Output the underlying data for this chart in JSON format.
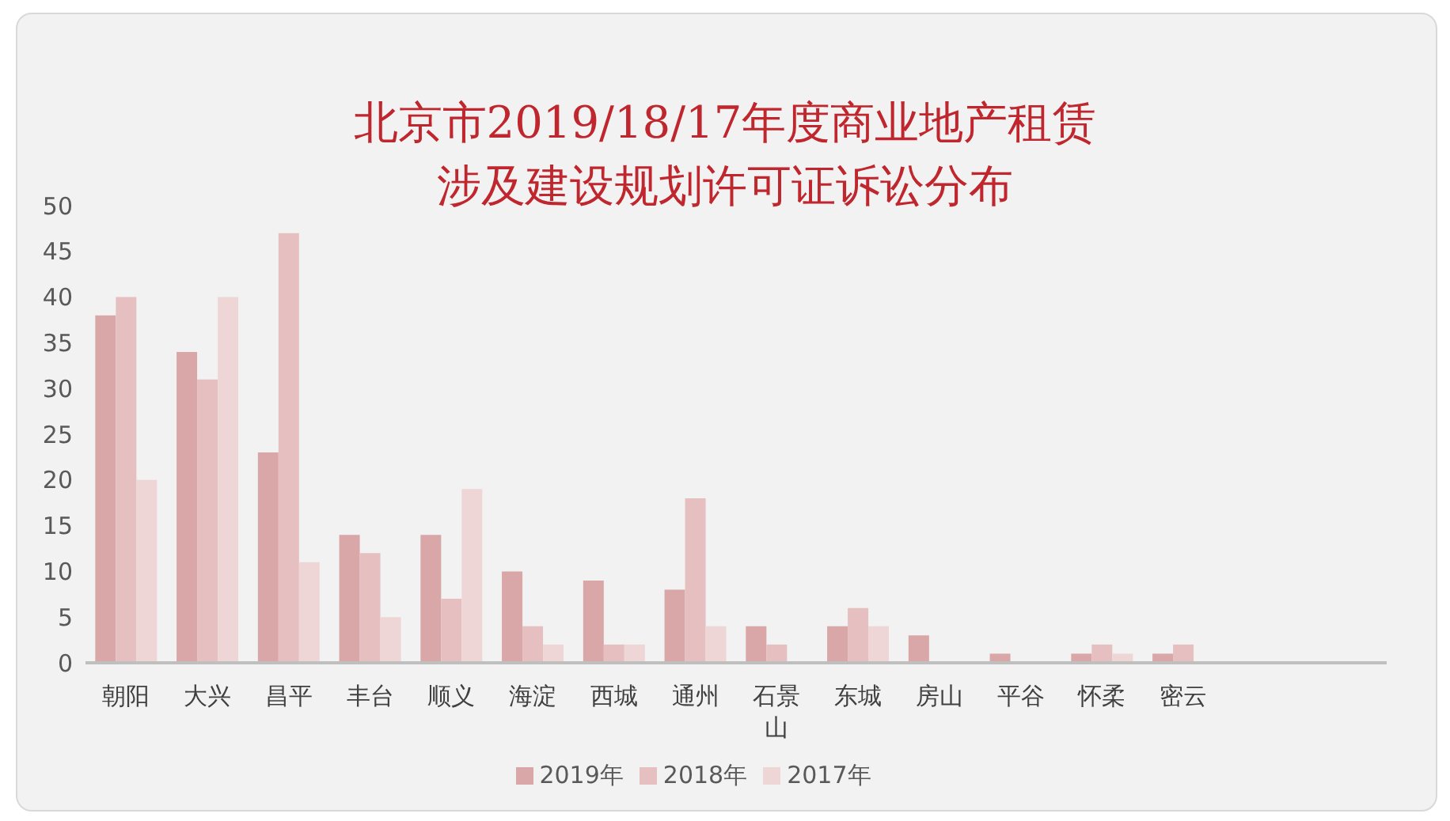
{
  "chart_data": {
    "type": "bar",
    "title": "北京市2019/18/17年度商业地产租赁涉及建设规划许可证诉讼分布",
    "categories": [
      "朝阳",
      "大兴",
      "昌平",
      "丰台",
      "顺义",
      "海淀",
      "西城",
      "通州",
      "石景山",
      "东城",
      "房山",
      "平谷",
      "怀柔",
      "密云",
      null,
      null
    ],
    "series": [
      {
        "name": "2019年",
        "color": "#d9a7a7",
        "values": [
          38,
          34,
          23,
          14,
          14,
          10,
          9,
          8,
          4,
          4,
          3,
          1,
          1,
          1,
          null,
          null
        ]
      },
      {
        "name": "2018年",
        "color": "#e6c0c0",
        "values": [
          40,
          31,
          47,
          12,
          7,
          4,
          2,
          18,
          2,
          6,
          0,
          0,
          2,
          2,
          null,
          null
        ]
      },
      {
        "name": "2017年",
        "color": "#efd6d6",
        "values": [
          20,
          40,
          11,
          5,
          19,
          2,
          2,
          4,
          0,
          4,
          0,
          0,
          1,
          0,
          null,
          null
        ]
      }
    ],
    "ylim": [
      0,
      50
    ],
    "yticks": [
      0,
      5,
      10,
      15,
      20,
      25,
      30,
      35,
      40,
      45,
      50
    ],
    "grid": false,
    "legend": "bottom"
  }
}
